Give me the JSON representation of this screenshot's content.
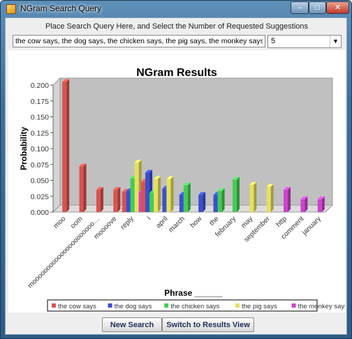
{
  "window": {
    "title": "NGram Search Query"
  },
  "controls": {
    "minimize_glyph": "–",
    "maximize_glyph": "□",
    "close_glyph": "✕"
  },
  "query": {
    "instructions": "Place Search Query Here, and Select the Number of Requested Suggestions",
    "value": "the cow says, the dog says, the chicken says, the pig says, the monkey says",
    "suggestions_value": "5",
    "dropdown_arrow_glyph": "▼"
  },
  "buttons": {
    "new_search": "New Search",
    "switch_view": "Switch to Results View"
  },
  "chart_data": {
    "type": "bar",
    "title": "NGram Results",
    "xlabel": "Phrase ______",
    "ylabel": "Probability",
    "ylim": [
      0,
      0.2
    ],
    "yticks": [
      "0.000",
      "0.025",
      "0.050",
      "0.075",
      "0.100",
      "0.125",
      "0.150",
      "0.175",
      "0.200"
    ],
    "legend_position": "bottom",
    "grid": false,
    "categories": [
      "moo",
      "oom",
      "moooooooooooooooooooooo…",
      "moooove",
      "reply",
      "i",
      "april",
      "march",
      "how",
      "the",
      "february",
      "may",
      "september",
      "http",
      "comment",
      "january"
    ],
    "series": [
      {
        "name": "the cow says",
        "color": "#d9534f",
        "values": [
          0.205,
          0.072,
          0.035,
          0.035,
          0.032,
          0.048,
          0.0,
          0.0,
          0.0,
          0.0,
          0.0,
          0.0,
          0.0,
          0.0,
          0.0,
          0.0
        ]
      },
      {
        "name": "the dog says",
        "color": "#3a4fd0",
        "values": [
          0.0,
          0.0,
          0.0,
          0.0,
          0.033,
          0.062,
          0.037,
          0.027,
          0.027,
          0.027,
          0.0,
          0.0,
          0.0,
          0.0,
          0.0,
          0.0
        ]
      },
      {
        "name": "the chicken says",
        "color": "#44cc55",
        "values": [
          0.0,
          0.0,
          0.0,
          0.0,
          0.053,
          0.03,
          0.0,
          0.042,
          0.0,
          0.033,
          0.051,
          0.0,
          0.0,
          0.0,
          0.0,
          0.0
        ]
      },
      {
        "name": "the pig says",
        "color": "#e6e060",
        "values": [
          0.0,
          0.0,
          0.0,
          0.0,
          0.078,
          0.052,
          0.052,
          0.0,
          0.0,
          0.0,
          0.0,
          0.043,
          0.04,
          0.0,
          0.0,
          0.0
        ]
      },
      {
        "name": "the monkey says",
        "color": "#cc44cc",
        "values": [
          0.0,
          0.0,
          0.0,
          0.0,
          0.032,
          0.0,
          0.0,
          0.0,
          0.0,
          0.0,
          0.0,
          0.0,
          0.0,
          0.035,
          0.02,
          0.02
        ]
      }
    ]
  }
}
